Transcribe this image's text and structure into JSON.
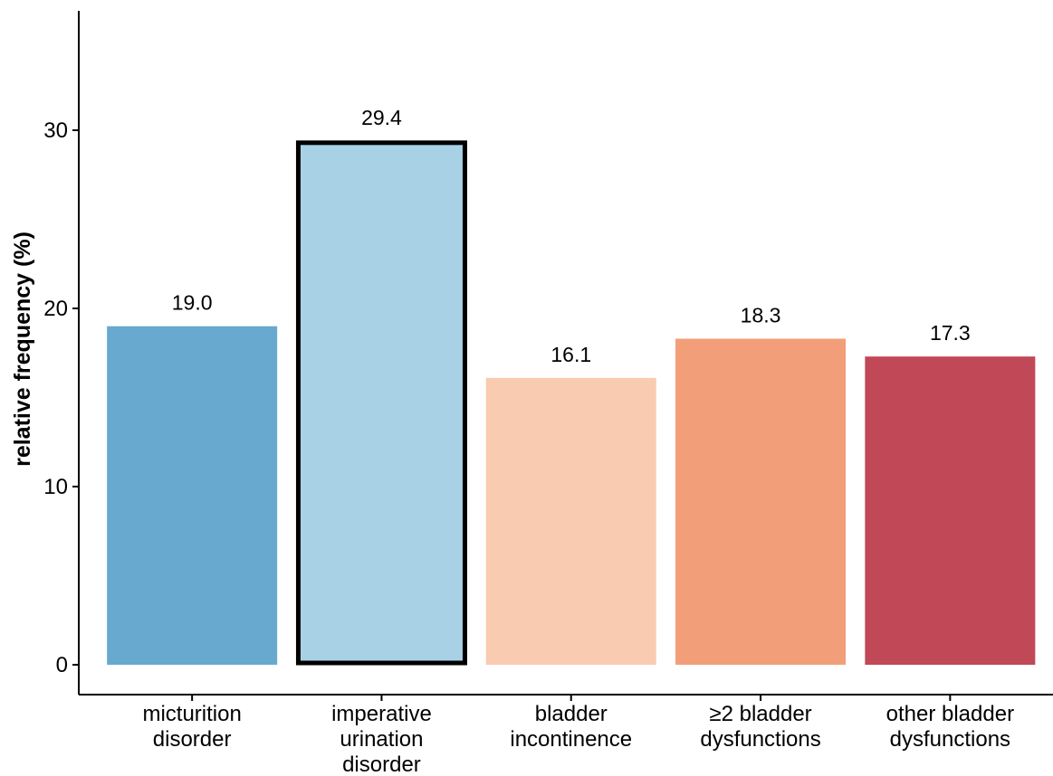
{
  "chart_data": {
    "type": "bar",
    "title": "",
    "xlabel": "",
    "ylabel": "relative frequency (%)",
    "ylim": [
      0,
      36
    ],
    "yticks": [
      0,
      10,
      20,
      30
    ],
    "grid": false,
    "categories": [
      [
        "micturition",
        "disorder"
      ],
      [
        "imperative",
        "urination",
        "disorder"
      ],
      [
        "bladder",
        "incontinence"
      ],
      [
        "≥2 bladder",
        "dysfunctions"
      ],
      [
        "other bladder",
        "dysfunctions"
      ]
    ],
    "values": [
      19.0,
      29.4,
      16.1,
      18.3,
      17.3
    ],
    "value_labels": [
      "19.0",
      "29.4",
      "16.1",
      "18.3",
      "17.3"
    ],
    "colors": [
      "#67a9cf",
      "#a8d1e5",
      "#f9cbb1",
      "#f29e78",
      "#c04857"
    ],
    "highlighted_index": 1,
    "highlight_outline_color": "#000000"
  }
}
